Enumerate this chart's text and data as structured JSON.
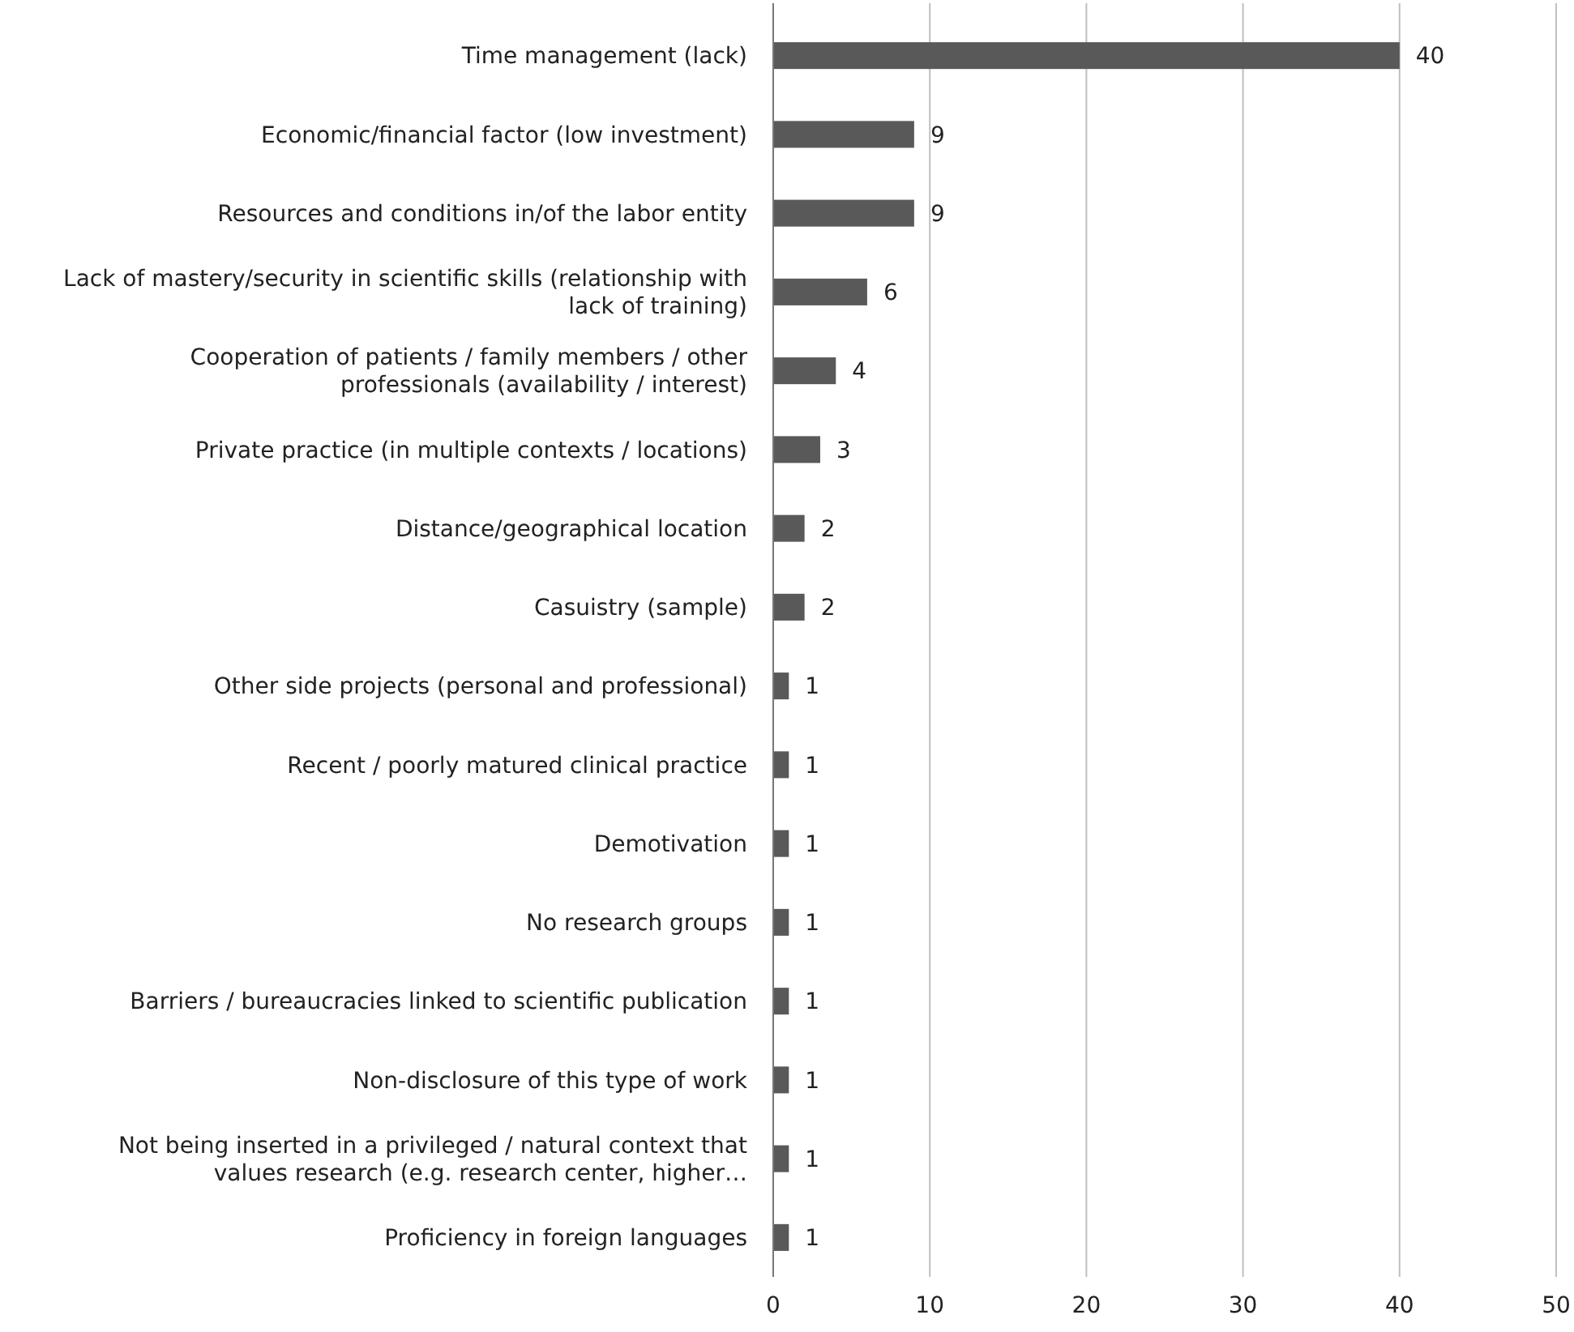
{
  "chart_data": {
    "type": "bar",
    "orientation": "horizontal",
    "categories": [
      "Time management (lack)",
      "Economic/financial factor (low investment)",
      "Resources and conditions in/of the labor entity",
      "Lack of mastery/security in scientific skills (relationship with lack of training)",
      "Cooperation of patients / family members / other professionals (availability / interest)",
      "Private practice (in multiple contexts / locations)",
      "Distance/geographical location",
      "Casuistry (sample)",
      "Other side projects (personal and professional)",
      "Recent / poorly matured clinical practice",
      "Demotivation",
      "No research groups",
      "Barriers / bureaucracies linked to scientific publication",
      "Non-disclosure of this type of work",
      "Not being inserted in a privileged / natural context that values research (e.g. research center, higher…",
      "Proficiency in foreign languages"
    ],
    "values": [
      40,
      9,
      9,
      6,
      4,
      3,
      2,
      2,
      1,
      1,
      1,
      1,
      1,
      1,
      1,
      1
    ],
    "color": "#595959",
    "xlim": [
      0,
      50
    ],
    "xticks": [
      0,
      10,
      20,
      30,
      40,
      50
    ],
    "grid": "x",
    "data_labels": true
  }
}
